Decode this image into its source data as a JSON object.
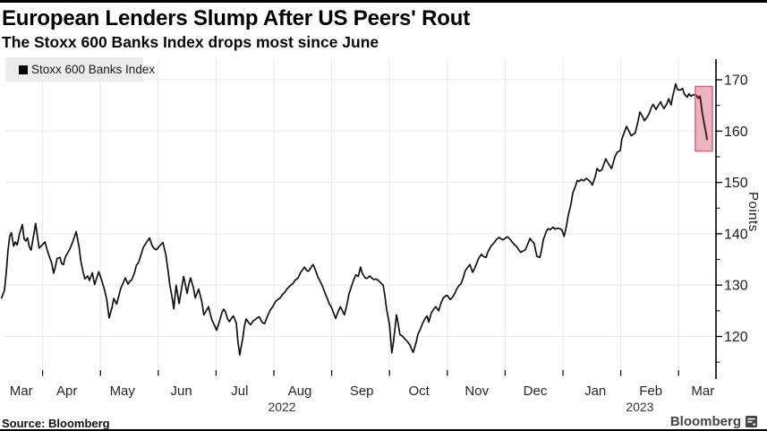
{
  "header": {
    "title": "European Lenders Slump After US Peers' Rout",
    "subtitle": "The Stoxx 600 Banks Index drops most since June"
  },
  "legend": {
    "label": "Stoxx 600 Banks Index"
  },
  "y_axis_label": "Points",
  "footer": {
    "source": "Source: Bloomberg",
    "brand": "Bloomberg"
  },
  "colors": {
    "line": "#111111",
    "grid": "#e7e7e7",
    "axis": "#000000",
    "legend_bg": "#ececec",
    "highlight_fill": "#e9a2af",
    "highlight_border": "#c96b80",
    "highlight_line": "#571a21"
  },
  "chart_data": {
    "type": "line",
    "title": "European Lenders Slump After US Peers' Rout",
    "subtitle": "The Stoxx 600 Banks Index drops most since June",
    "series_name": "Stoxx 600 Banks Index",
    "ylabel": "Points",
    "x_unit": "months since 2022-03-01 (0 = Mar 1 2022, 12 = Mar 1 2023)",
    "ylim": [
      113.4,
      174.0
    ],
    "grid": true,
    "legend_position": "top-left",
    "y_ticks_major": [
      120,
      130,
      140,
      150,
      160,
      170
    ],
    "y_ticks_minor": [
      115,
      125,
      135,
      145,
      155,
      165
    ],
    "x_month_gridlines": [
      1,
      2,
      3,
      4,
      5,
      6,
      7,
      8,
      9,
      10,
      11,
      12
    ],
    "x_labels": [
      {
        "label": "Mar",
        "m": 0.63
      },
      {
        "label": "Apr",
        "m": 1.42
      },
      {
        "label": "May",
        "m": 2.38
      },
      {
        "label": "Jun",
        "m": 3.4
      },
      {
        "label": "Jul",
        "m": 4.41
      },
      {
        "label": "Aug",
        "m": 5.45
      },
      {
        "label": "Sep",
        "m": 6.52
      },
      {
        "label": "Oct",
        "m": 7.51
      },
      {
        "label": "Nov",
        "m": 8.51
      },
      {
        "label": "Dec",
        "m": 9.52
      },
      {
        "label": "Jan",
        "m": 10.56
      },
      {
        "label": "Feb",
        "m": 11.52
      },
      {
        "label": "Mar",
        "m": 12.42
      }
    ],
    "year_labels": [
      {
        "label": "2022",
        "m": 5.14
      },
      {
        "label": "2023",
        "m": 11.33
      }
    ],
    "highlight_box": {
      "x0": 12.29,
      "x1": 12.585,
      "v0": 156.1,
      "v1": 168.7
    },
    "points": [
      [
        0.29,
        127.5
      ],
      [
        0.34,
        129
      ],
      [
        0.37,
        132.3
      ],
      [
        0.4,
        136.5
      ],
      [
        0.43,
        139.5
      ],
      [
        0.46,
        140.2
      ],
      [
        0.5,
        137.6
      ],
      [
        0.53,
        138.4
      ],
      [
        0.56,
        137.8
      ],
      [
        0.6,
        140
      ],
      [
        0.65,
        141.8
      ],
      [
        0.68,
        139
      ],
      [
        0.71,
        138.6
      ],
      [
        0.74,
        139.2
      ],
      [
        0.77,
        137.5
      ],
      [
        0.8,
        136.8
      ],
      [
        0.85,
        140
      ],
      [
        0.88,
        142
      ],
      [
        0.91,
        139.5
      ],
      [
        0.94,
        137.2
      ],
      [
        0.99,
        137.8
      ],
      [
        1.04,
        138.4
      ],
      [
        1.08,
        136.8
      ],
      [
        1.11,
        135.8
      ],
      [
        1.16,
        134.2
      ],
      [
        1.19,
        132.3
      ],
      [
        1.22,
        133.5
      ],
      [
        1.25,
        135.2
      ],
      [
        1.3,
        135.4
      ],
      [
        1.33,
        134.2
      ],
      [
        1.36,
        134
      ],
      [
        1.39,
        135.4
      ],
      [
        1.44,
        136.4
      ],
      [
        1.47,
        137
      ],
      [
        1.52,
        138.4
      ],
      [
        1.58,
        140.4
      ],
      [
        1.63,
        137.5
      ],
      [
        1.66,
        134.8
      ],
      [
        1.7,
        132.6
      ],
      [
        1.73,
        131.2
      ],
      [
        1.78,
        131.8
      ],
      [
        1.81,
        130.9
      ],
      [
        1.86,
        132.4
      ],
      [
        1.9,
        130.1
      ],
      [
        1.97,
        132.6
      ],
      [
        2.01,
        131.4
      ],
      [
        2.06,
        129.5
      ],
      [
        2.11,
        127.2
      ],
      [
        2.15,
        123.6
      ],
      [
        2.2,
        125.6
      ],
      [
        2.23,
        127.4
      ],
      [
        2.28,
        126.3
      ],
      [
        2.32,
        128
      ],
      [
        2.35,
        129.3
      ],
      [
        2.4,
        130.6
      ],
      [
        2.43,
        131.4
      ],
      [
        2.48,
        130.2
      ],
      [
        2.51,
        130.8
      ],
      [
        2.54,
        131
      ],
      [
        2.59,
        132.4
      ],
      [
        2.62,
        133.8
      ],
      [
        2.66,
        134.4
      ],
      [
        2.71,
        136.2
      ],
      [
        2.74,
        137.3
      ],
      [
        2.79,
        138.2
      ],
      [
        2.85,
        139.2
      ],
      [
        2.89,
        137.8
      ],
      [
        2.93,
        137.1
      ],
      [
        2.97,
        136.9
      ],
      [
        3.02,
        137.6
      ],
      [
        3.08,
        138.3
      ],
      [
        3.13,
        136
      ],
      [
        3.17,
        132.8
      ],
      [
        3.2,
        130.1
      ],
      [
        3.24,
        127.6
      ],
      [
        3.27,
        125.4
      ],
      [
        3.31,
        130
      ],
      [
        3.36,
        126.4
      ],
      [
        3.41,
        129.8
      ],
      [
        3.44,
        131.7
      ],
      [
        3.47,
        130
      ],
      [
        3.5,
        128.4
      ],
      [
        3.53,
        130.2
      ],
      [
        3.56,
        131.4
      ],
      [
        3.61,
        129.4
      ],
      [
        3.64,
        127.5
      ],
      [
        3.67,
        128.4
      ],
      [
        3.7,
        129.2
      ],
      [
        3.75,
        127
      ],
      [
        3.79,
        124.2
      ],
      [
        3.82,
        124.8
      ],
      [
        3.87,
        125.8
      ],
      [
        3.9,
        124.4
      ],
      [
        3.93,
        123.2
      ],
      [
        3.98,
        122
      ],
      [
        4.01,
        121.2
      ],
      [
        4.06,
        123
      ],
      [
        4.1,
        124.6
      ],
      [
        4.13,
        125.3
      ],
      [
        4.16,
        124.9
      ],
      [
        4.2,
        123.4
      ],
      [
        4.23,
        122.9
      ],
      [
        4.27,
        123.6
      ],
      [
        4.3,
        124
      ],
      [
        4.35,
        122.6
      ],
      [
        4.38,
        118.9
      ],
      [
        4.41,
        116.4
      ],
      [
        4.46,
        119.5
      ],
      [
        4.49,
        122
      ],
      [
        4.52,
        123.4
      ],
      [
        4.57,
        122.6
      ],
      [
        4.6,
        122.3
      ],
      [
        4.64,
        123
      ],
      [
        4.68,
        123.3
      ],
      [
        4.72,
        123.7
      ],
      [
        4.75,
        123.8
      ],
      [
        4.8,
        122.7
      ],
      [
        4.84,
        122.5
      ],
      [
        4.89,
        124
      ],
      [
        4.94,
        125.2
      ],
      [
        4.98,
        125.8
      ],
      [
        5.03,
        126.8
      ],
      [
        5.08,
        127.3
      ],
      [
        5.11,
        127.5
      ],
      [
        5.15,
        128.2
      ],
      [
        5.19,
        128.6
      ],
      [
        5.23,
        129.3
      ],
      [
        5.28,
        129.9
      ],
      [
        5.32,
        130.2
      ],
      [
        5.37,
        131
      ],
      [
        5.42,
        131.4
      ],
      [
        5.46,
        132.4
      ],
      [
        5.53,
        133.5
      ],
      [
        5.57,
        132.8
      ],
      [
        5.6,
        132.7
      ],
      [
        5.65,
        133.6
      ],
      [
        5.68,
        134
      ],
      [
        5.73,
        132.6
      ],
      [
        5.76,
        131.6
      ],
      [
        5.79,
        131
      ],
      [
        5.84,
        129.8
      ],
      [
        5.88,
        128.6
      ],
      [
        5.93,
        127.2
      ],
      [
        5.96,
        126.3
      ],
      [
        5.99,
        125.8
      ],
      [
        6.04,
        124.4
      ],
      [
        6.07,
        123.5
      ],
      [
        6.11,
        124.8
      ],
      [
        6.15,
        125.8
      ],
      [
        6.19,
        124.9
      ],
      [
        6.22,
        124.2
      ],
      [
        6.27,
        126.5
      ],
      [
        6.3,
        128.3
      ],
      [
        6.35,
        130
      ],
      [
        6.38,
        131
      ],
      [
        6.42,
        132
      ],
      [
        6.46,
        131.7
      ],
      [
        6.5,
        133.5
      ],
      [
        6.53,
        132.3
      ],
      [
        6.58,
        131.4
      ],
      [
        6.61,
        131.3
      ],
      [
        6.66,
        131.8
      ],
      [
        6.69,
        131.4
      ],
      [
        6.73,
        131.1
      ],
      [
        6.76,
        131.2
      ],
      [
        6.81,
        130.9
      ],
      [
        6.84,
        130.5
      ],
      [
        6.89,
        130
      ],
      [
        6.92,
        128
      ],
      [
        6.95,
        125.3
      ],
      [
        7.0,
        122.3
      ],
      [
        7.04,
        116.8
      ],
      [
        7.07,
        119
      ],
      [
        7.12,
        124.2
      ],
      [
        7.15,
        122.5
      ],
      [
        7.18,
        120.4
      ],
      [
        7.23,
        120
      ],
      [
        7.26,
        119.6
      ],
      [
        7.31,
        119
      ],
      [
        7.35,
        118.4
      ],
      [
        7.38,
        117.6
      ],
      [
        7.41,
        116.9
      ],
      [
        7.46,
        118.8
      ],
      [
        7.49,
        120.4
      ],
      [
        7.54,
        121.6
      ],
      [
        7.57,
        122.5
      ],
      [
        7.62,
        123.6
      ],
      [
        7.65,
        124
      ],
      [
        7.68,
        122.8
      ],
      [
        7.72,
        124.5
      ],
      [
        7.77,
        125.4
      ],
      [
        7.8,
        125.8
      ],
      [
        7.85,
        125
      ],
      [
        7.89,
        126.5
      ],
      [
        7.93,
        127.5
      ],
      [
        7.97,
        127.9
      ],
      [
        8.0,
        128
      ],
      [
        8.05,
        127.2
      ],
      [
        8.08,
        127.5
      ],
      [
        8.13,
        128.4
      ],
      [
        8.16,
        129.2
      ],
      [
        8.2,
        129.9
      ],
      [
        8.24,
        130.3
      ],
      [
        8.28,
        131.6
      ],
      [
        8.31,
        132.8
      ],
      [
        8.36,
        133.6
      ],
      [
        8.39,
        134
      ],
      [
        8.44,
        132.5
      ],
      [
        8.47,
        133.2
      ],
      [
        8.51,
        134.3
      ],
      [
        8.54,
        135.2
      ],
      [
        8.59,
        136
      ],
      [
        8.62,
        135.6
      ],
      [
        8.67,
        135.4
      ],
      [
        8.7,
        136.4
      ],
      [
        8.75,
        137.5
      ],
      [
        8.78,
        137.9
      ],
      [
        8.82,
        138.4
      ],
      [
        8.85,
        138.9
      ],
      [
        8.9,
        139.3
      ],
      [
        8.93,
        139
      ],
      [
        8.96,
        138.8
      ],
      [
        9.01,
        139.2
      ],
      [
        9.04,
        139.4
      ],
      [
        9.09,
        138.9
      ],
      [
        9.12,
        138.4
      ],
      [
        9.16,
        137.9
      ],
      [
        9.2,
        137.5
      ],
      [
        9.24,
        136.8
      ],
      [
        9.27,
        136.4
      ],
      [
        9.32,
        136.7
      ],
      [
        9.35,
        136.9
      ],
      [
        9.4,
        138.2
      ],
      [
        9.43,
        139.1
      ],
      [
        9.46,
        138.6
      ],
      [
        9.5,
        138.2
      ],
      [
        9.55,
        135.6
      ],
      [
        9.6,
        135.4
      ],
      [
        9.63,
        136.8
      ],
      [
        9.66,
        138.8
      ],
      [
        9.71,
        140.4
      ],
      [
        9.74,
        141
      ],
      [
        9.78,
        140.8
      ],
      [
        9.83,
        141.3
      ],
      [
        9.86,
        140.9
      ],
      [
        9.91,
        141.1
      ],
      [
        9.94,
        141
      ],
      [
        9.98,
        140.8
      ],
      [
        10.02,
        139.5
      ],
      [
        10.06,
        141.5
      ],
      [
        10.09,
        143.5
      ],
      [
        10.14,
        145.8
      ],
      [
        10.17,
        147.9
      ],
      [
        10.22,
        149.4
      ],
      [
        10.25,
        150.4
      ],
      [
        10.28,
        150.2
      ],
      [
        10.32,
        150.6
      ],
      [
        10.36,
        150.3
      ],
      [
        10.4,
        150.8
      ],
      [
        10.45,
        150.4
      ],
      [
        10.48,
        150
      ],
      [
        10.51,
        149.5
      ],
      [
        10.56,
        151.2
      ],
      [
        10.59,
        152.7
      ],
      [
        10.63,
        152.2
      ],
      [
        10.67,
        152.4
      ],
      [
        10.71,
        153.6
      ],
      [
        10.74,
        154.6
      ],
      [
        10.79,
        153.6
      ],
      [
        10.84,
        152.7
      ],
      [
        10.87,
        153.8
      ],
      [
        10.9,
        155
      ],
      [
        10.94,
        155.9
      ],
      [
        10.99,
        156.2
      ],
      [
        11.02,
        158.5
      ],
      [
        11.07,
        160
      ],
      [
        11.1,
        160.9
      ],
      [
        11.15,
        159.8
      ],
      [
        11.18,
        159.1
      ],
      [
        11.22,
        159.4
      ],
      [
        11.25,
        159.6
      ],
      [
        11.3,
        162
      ],
      [
        11.33,
        163.7
      ],
      [
        11.38,
        162.8
      ],
      [
        11.41,
        162
      ],
      [
        11.46,
        162.8
      ],
      [
        11.49,
        163.4
      ],
      [
        11.53,
        164.6
      ],
      [
        11.56,
        165.2
      ],
      [
        11.61,
        164.2
      ],
      [
        11.64,
        164.8
      ],
      [
        11.69,
        165.7
      ],
      [
        11.72,
        164.9
      ],
      [
        11.75,
        164.4
      ],
      [
        11.8,
        165.4
      ],
      [
        11.83,
        166.3
      ],
      [
        11.87,
        165.1
      ],
      [
        11.9,
        166.8
      ],
      [
        11.95,
        169.2
      ],
      [
        11.98,
        168.1
      ],
      [
        12.03,
        168
      ],
      [
        12.07,
        168.3
      ],
      [
        12.1,
        167.2
      ],
      [
        12.15,
        166.6
      ],
      [
        12.18,
        167.3
      ],
      [
        12.21,
        166.8
      ],
      [
        12.26,
        167.1
      ],
      [
        12.31,
        166.9
      ],
      [
        12.34,
        166.4
      ],
      [
        12.37,
        166.8
      ],
      [
        12.38,
        166.2
      ],
      [
        12.41,
        163.5
      ],
      [
        12.45,
        161
      ],
      [
        12.48,
        159.3
      ],
      [
        12.49,
        158.4
      ]
    ]
  }
}
